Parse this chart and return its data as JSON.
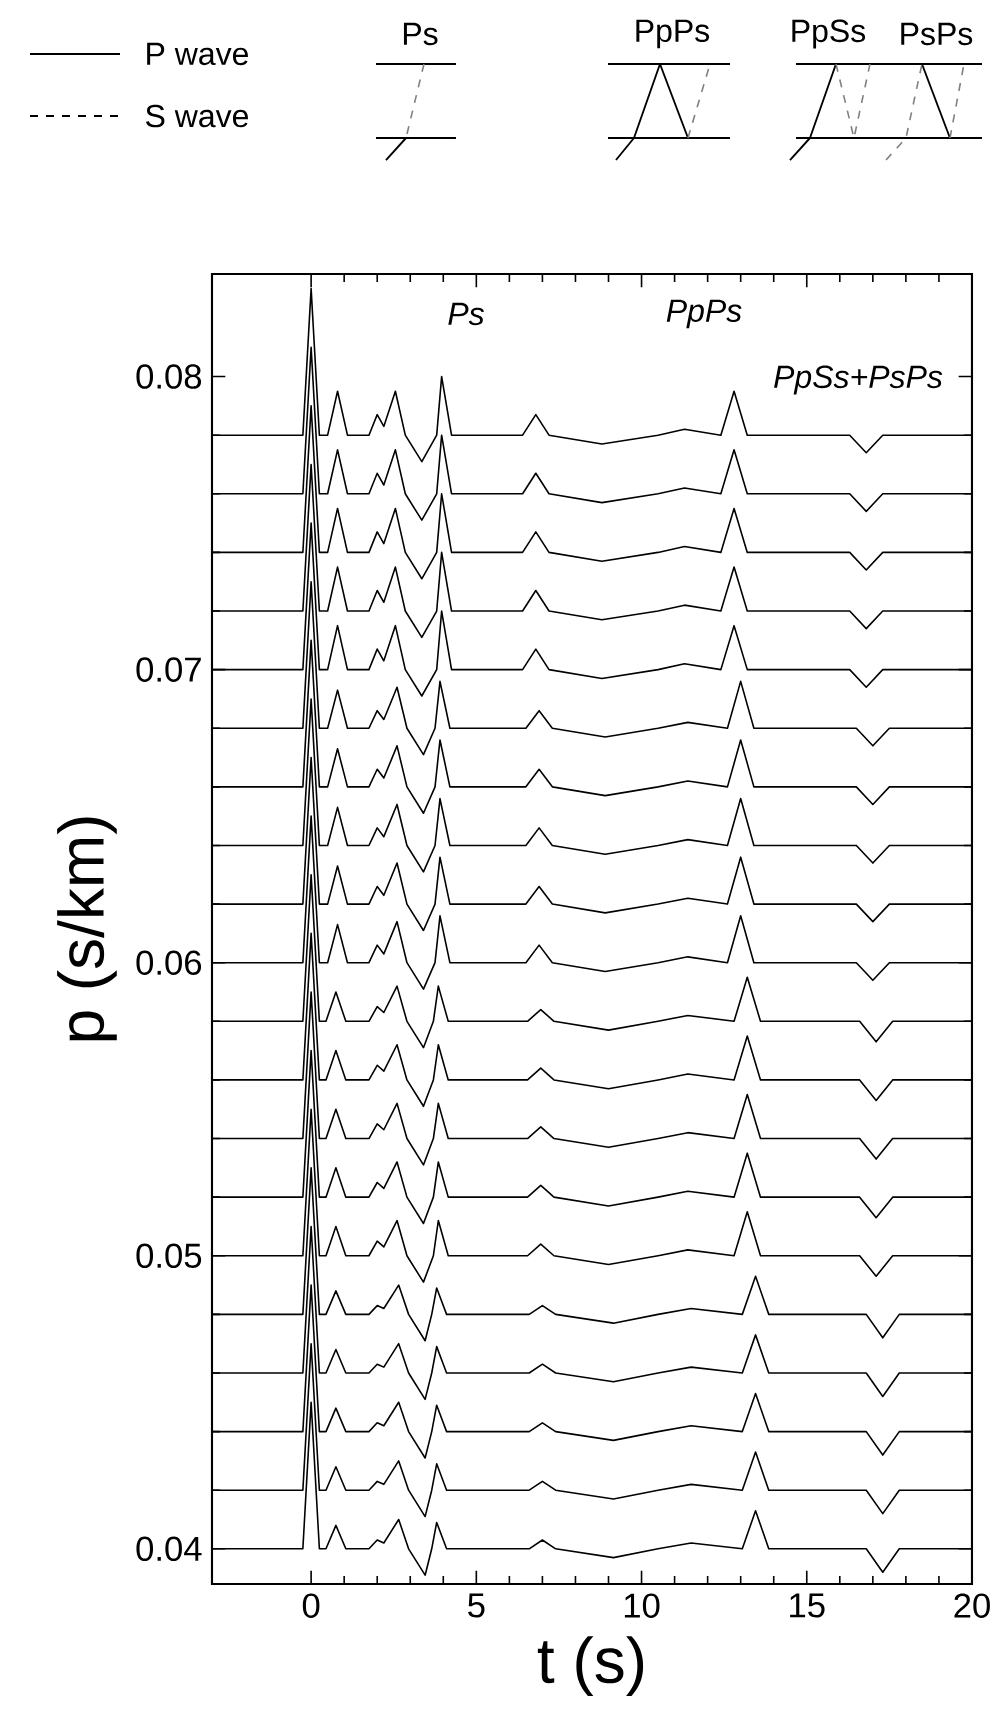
{
  "chart_data": {
    "type": "line",
    "xlabel": "t (s)",
    "ylabel": "p (s/km)",
    "xlim": [
      -3,
      20
    ],
    "ylim": [
      0.0388,
      0.0835
    ],
    "xticks": [
      0,
      5,
      10,
      15,
      20
    ],
    "yticks": [
      0.04,
      0.05,
      0.06,
      0.07,
      0.08
    ],
    "annotations": [
      "P wave",
      "S wave",
      "Ps",
      "PpPs",
      "PpSs",
      "PsPs",
      "Ps",
      "PpPs",
      "PpSs+PsPs"
    ],
    "series": [
      {
        "color": "#000000",
        "x": [
          -3,
          -0.25,
          0,
          0.25,
          0.5,
          0.8,
          1.1,
          1.75,
          2,
          2.2,
          2.55,
          2.85,
          3.35,
          3.8,
          3.95,
          4.25,
          5.5,
          6.4,
          6.8,
          7.2,
          8.8,
          10.5,
          11.3,
          12.4,
          12.8,
          13.2,
          16.3,
          16.8,
          17.3,
          20
        ],
        "values": [
          0.078,
          0.078,
          0.083,
          0.078,
          0.078,
          0.0795,
          0.078,
          0.078,
          0.0787,
          0.0783,
          0.0795,
          0.078,
          0.0771,
          0.078,
          0.08,
          0.078,
          0.078,
          0.078,
          0.0787,
          0.078,
          0.0777,
          0.078,
          0.0782,
          0.078,
          0.0795,
          0.078,
          0.078,
          0.0774,
          0.078,
          0.078
        ]
      },
      {
        "color": "#000000",
        "x": [
          -3,
          -0.25,
          0,
          0.25,
          0.5,
          0.8,
          1.1,
          1.75,
          2,
          2.2,
          2.55,
          2.85,
          3.35,
          3.8,
          3.95,
          4.25,
          5.5,
          6.4,
          6.8,
          7.2,
          8.8,
          10.5,
          11.3,
          12.4,
          12.8,
          13.2,
          16.3,
          16.8,
          17.3,
          20
        ],
        "values": [
          0.076,
          0.076,
          0.081,
          0.076,
          0.076,
          0.0775,
          0.076,
          0.076,
          0.0767,
          0.0763,
          0.0775,
          0.076,
          0.0751,
          0.076,
          0.078,
          0.076,
          0.076,
          0.076,
          0.0767,
          0.076,
          0.0757,
          0.076,
          0.0762,
          0.076,
          0.0775,
          0.076,
          0.076,
          0.0754,
          0.076,
          0.076
        ]
      },
      {
        "color": "#000000",
        "x": [
          -3,
          -0.25,
          0,
          0.25,
          0.5,
          0.8,
          1.1,
          1.75,
          2,
          2.2,
          2.55,
          2.85,
          3.35,
          3.8,
          3.95,
          4.25,
          5.5,
          6.4,
          6.8,
          7.2,
          8.8,
          10.5,
          11.3,
          12.4,
          12.8,
          13.2,
          16.3,
          16.8,
          17.3,
          20
        ],
        "values": [
          0.074,
          0.074,
          0.079,
          0.074,
          0.074,
          0.0755,
          0.074,
          0.074,
          0.0747,
          0.0743,
          0.0755,
          0.074,
          0.0731,
          0.074,
          0.076,
          0.074,
          0.074,
          0.074,
          0.0747,
          0.074,
          0.0737,
          0.074,
          0.0742,
          0.074,
          0.0755,
          0.074,
          0.074,
          0.0734,
          0.074,
          0.074
        ]
      },
      {
        "color": "#000000",
        "x": [
          -3,
          -0.25,
          0,
          0.25,
          0.5,
          0.8,
          1.1,
          1.75,
          2,
          2.2,
          2.55,
          2.85,
          3.35,
          3.8,
          3.95,
          4.25,
          5.5,
          6.4,
          6.8,
          7.2,
          8.8,
          10.5,
          11.3,
          12.4,
          12.8,
          13.2,
          16.3,
          16.8,
          17.3,
          20
        ],
        "values": [
          0.072,
          0.072,
          0.077,
          0.072,
          0.072,
          0.0735,
          0.072,
          0.072,
          0.0727,
          0.0723,
          0.0735,
          0.072,
          0.0711,
          0.072,
          0.074,
          0.072,
          0.072,
          0.072,
          0.0727,
          0.072,
          0.0717,
          0.072,
          0.0722,
          0.072,
          0.0735,
          0.072,
          0.072,
          0.0714,
          0.072,
          0.072
        ]
      },
      {
        "color": "#000000",
        "x": [
          -3,
          -0.25,
          0,
          0.25,
          0.5,
          0.8,
          1.1,
          1.75,
          2,
          2.2,
          2.55,
          2.85,
          3.35,
          3.8,
          3.95,
          4.25,
          5.5,
          6.4,
          6.8,
          7.2,
          8.8,
          10.5,
          11.3,
          12.4,
          12.8,
          13.2,
          16.3,
          16.8,
          17.3,
          20
        ],
        "values": [
          0.07,
          0.07,
          0.075,
          0.07,
          0.07,
          0.0715,
          0.07,
          0.07,
          0.0707,
          0.0703,
          0.0715,
          0.07,
          0.0691,
          0.07,
          0.072,
          0.07,
          0.07,
          0.07,
          0.0707,
          0.07,
          0.0697,
          0.07,
          0.0702,
          0.07,
          0.0715,
          0.07,
          0.07,
          0.0694,
          0.07,
          0.07
        ]
      },
      {
        "color": "#000000",
        "x": [
          -3,
          -0.25,
          0,
          0.25,
          0.5,
          0.8,
          1.1,
          1.75,
          2,
          2.2,
          2.6,
          2.9,
          3.4,
          3.75,
          3.9,
          4.2,
          5.6,
          6.5,
          6.9,
          7.3,
          8.9,
          10.5,
          11.4,
          12.6,
          13,
          13.4,
          16.5,
          17,
          17.5,
          20
        ],
        "values": [
          0.068,
          0.068,
          0.073,
          0.068,
          0.068,
          0.0693,
          0.068,
          0.068,
          0.0686,
          0.0683,
          0.0694,
          0.068,
          0.0671,
          0.068,
          0.0696,
          0.068,
          0.068,
          0.068,
          0.0686,
          0.068,
          0.0677,
          0.068,
          0.0682,
          0.068,
          0.0696,
          0.068,
          0.068,
          0.0674,
          0.068,
          0.068
        ]
      },
      {
        "color": "#000000",
        "x": [
          -3,
          -0.25,
          0,
          0.25,
          0.5,
          0.8,
          1.1,
          1.75,
          2,
          2.2,
          2.6,
          2.9,
          3.4,
          3.75,
          3.9,
          4.2,
          5.6,
          6.5,
          6.9,
          7.3,
          8.9,
          10.5,
          11.4,
          12.6,
          13,
          13.4,
          16.5,
          17,
          17.5,
          20
        ],
        "values": [
          0.066,
          0.066,
          0.071,
          0.066,
          0.066,
          0.0673,
          0.066,
          0.066,
          0.0666,
          0.0663,
          0.0674,
          0.066,
          0.0651,
          0.066,
          0.0676,
          0.066,
          0.066,
          0.066,
          0.0666,
          0.066,
          0.0657,
          0.066,
          0.0662,
          0.066,
          0.0676,
          0.066,
          0.066,
          0.0654,
          0.066,
          0.066
        ]
      },
      {
        "color": "#000000",
        "x": [
          -3,
          -0.25,
          0,
          0.25,
          0.5,
          0.8,
          1.1,
          1.75,
          2,
          2.2,
          2.6,
          2.9,
          3.4,
          3.75,
          3.9,
          4.2,
          5.6,
          6.5,
          6.9,
          7.3,
          8.9,
          10.5,
          11.4,
          12.6,
          13,
          13.4,
          16.5,
          17,
          17.5,
          20
        ],
        "values": [
          0.064,
          0.064,
          0.069,
          0.064,
          0.064,
          0.0653,
          0.064,
          0.064,
          0.0646,
          0.0643,
          0.0654,
          0.064,
          0.0631,
          0.064,
          0.0656,
          0.064,
          0.064,
          0.064,
          0.0646,
          0.064,
          0.0637,
          0.064,
          0.0642,
          0.064,
          0.0656,
          0.064,
          0.064,
          0.0634,
          0.064,
          0.064
        ]
      },
      {
        "color": "#000000",
        "x": [
          -3,
          -0.25,
          0,
          0.25,
          0.5,
          0.8,
          1.1,
          1.75,
          2,
          2.2,
          2.6,
          2.9,
          3.4,
          3.75,
          3.9,
          4.2,
          5.6,
          6.5,
          6.9,
          7.3,
          8.9,
          10.5,
          11.4,
          12.6,
          13,
          13.4,
          16.5,
          17,
          17.5,
          20
        ],
        "values": [
          0.062,
          0.062,
          0.067,
          0.062,
          0.062,
          0.0633,
          0.062,
          0.062,
          0.0626,
          0.0623,
          0.0634,
          0.062,
          0.0611,
          0.062,
          0.0636,
          0.062,
          0.062,
          0.062,
          0.0626,
          0.062,
          0.0617,
          0.062,
          0.0622,
          0.062,
          0.0636,
          0.062,
          0.062,
          0.0614,
          0.062,
          0.062
        ]
      },
      {
        "color": "#000000",
        "x": [
          -3,
          -0.25,
          0,
          0.25,
          0.5,
          0.8,
          1.1,
          1.75,
          2,
          2.2,
          2.6,
          2.9,
          3.4,
          3.75,
          3.9,
          4.2,
          5.6,
          6.5,
          6.9,
          7.3,
          8.9,
          10.5,
          11.4,
          12.6,
          13,
          13.4,
          16.5,
          17,
          17.5,
          20
        ],
        "values": [
          0.06,
          0.06,
          0.065,
          0.06,
          0.06,
          0.0613,
          0.06,
          0.06,
          0.0606,
          0.0603,
          0.0614,
          0.06,
          0.0591,
          0.06,
          0.0616,
          0.06,
          0.06,
          0.06,
          0.0606,
          0.06,
          0.0597,
          0.06,
          0.0602,
          0.06,
          0.0616,
          0.06,
          0.06,
          0.0594,
          0.06,
          0.06
        ]
      },
      {
        "color": "#000000",
        "x": [
          -3,
          -0.25,
          0,
          0.25,
          0.45,
          0.75,
          1.05,
          1.75,
          2,
          2.2,
          2.6,
          2.9,
          3.4,
          3.7,
          3.85,
          4.15,
          5.7,
          6.55,
          6.95,
          7.35,
          9,
          10.5,
          11.4,
          12.8,
          13.2,
          13.6,
          16.6,
          17.1,
          17.6,
          20
        ],
        "values": [
          0.058,
          0.058,
          0.063,
          0.058,
          0.058,
          0.059,
          0.058,
          0.058,
          0.0585,
          0.0583,
          0.0592,
          0.058,
          0.0571,
          0.058,
          0.0592,
          0.058,
          0.058,
          0.058,
          0.0584,
          0.058,
          0.0577,
          0.058,
          0.0582,
          0.058,
          0.0595,
          0.058,
          0.058,
          0.0573,
          0.058,
          0.058
        ]
      },
      {
        "color": "#000000",
        "x": [
          -3,
          -0.25,
          0,
          0.25,
          0.45,
          0.75,
          1.05,
          1.75,
          2,
          2.2,
          2.6,
          2.9,
          3.4,
          3.7,
          3.85,
          4.15,
          5.7,
          6.55,
          6.95,
          7.35,
          9,
          10.5,
          11.4,
          12.8,
          13.2,
          13.6,
          16.6,
          17.1,
          17.6,
          20
        ],
        "values": [
          0.056,
          0.056,
          0.061,
          0.056,
          0.056,
          0.057,
          0.056,
          0.056,
          0.0565,
          0.0563,
          0.0572,
          0.056,
          0.0551,
          0.056,
          0.0572,
          0.056,
          0.056,
          0.056,
          0.0564,
          0.056,
          0.0557,
          0.056,
          0.0562,
          0.056,
          0.0575,
          0.056,
          0.056,
          0.0553,
          0.056,
          0.056
        ]
      },
      {
        "color": "#000000",
        "x": [
          -3,
          -0.25,
          0,
          0.25,
          0.45,
          0.75,
          1.05,
          1.75,
          2,
          2.2,
          2.6,
          2.9,
          3.4,
          3.7,
          3.85,
          4.15,
          5.7,
          6.55,
          6.95,
          7.35,
          9,
          10.5,
          11.4,
          12.8,
          13.2,
          13.6,
          16.6,
          17.1,
          17.6,
          20
        ],
        "values": [
          0.054,
          0.054,
          0.059,
          0.054,
          0.054,
          0.055,
          0.054,
          0.054,
          0.0545,
          0.0543,
          0.0552,
          0.054,
          0.0531,
          0.054,
          0.0552,
          0.054,
          0.054,
          0.054,
          0.0544,
          0.054,
          0.0537,
          0.054,
          0.0542,
          0.054,
          0.0555,
          0.054,
          0.054,
          0.0533,
          0.054,
          0.054
        ]
      },
      {
        "color": "#000000",
        "x": [
          -3,
          -0.25,
          0,
          0.25,
          0.45,
          0.75,
          1.05,
          1.75,
          2,
          2.2,
          2.6,
          2.9,
          3.4,
          3.7,
          3.85,
          4.15,
          5.7,
          6.55,
          6.95,
          7.35,
          9,
          10.5,
          11.4,
          12.8,
          13.2,
          13.6,
          16.6,
          17.1,
          17.6,
          20
        ],
        "values": [
          0.052,
          0.052,
          0.057,
          0.052,
          0.052,
          0.053,
          0.052,
          0.052,
          0.0525,
          0.0523,
          0.0532,
          0.052,
          0.0511,
          0.052,
          0.0532,
          0.052,
          0.052,
          0.052,
          0.0524,
          0.052,
          0.0517,
          0.052,
          0.0522,
          0.052,
          0.0535,
          0.052,
          0.052,
          0.0513,
          0.052,
          0.052
        ]
      },
      {
        "color": "#000000",
        "x": [
          -3,
          -0.25,
          0,
          0.25,
          0.45,
          0.75,
          1.05,
          1.75,
          2,
          2.2,
          2.6,
          2.9,
          3.4,
          3.7,
          3.85,
          4.15,
          5.7,
          6.55,
          6.95,
          7.35,
          9,
          10.5,
          11.4,
          12.8,
          13.2,
          13.6,
          16.6,
          17.1,
          17.6,
          20
        ],
        "values": [
          0.05,
          0.05,
          0.055,
          0.05,
          0.05,
          0.051,
          0.05,
          0.05,
          0.0505,
          0.0503,
          0.0512,
          0.05,
          0.0491,
          0.05,
          0.0512,
          0.05,
          0.05,
          0.05,
          0.0504,
          0.05,
          0.0497,
          0.05,
          0.0502,
          0.05,
          0.0515,
          0.05,
          0.05,
          0.0493,
          0.05,
          0.05
        ]
      },
      {
        "color": "#000000",
        "x": [
          -3,
          -0.25,
          0,
          0.25,
          0.45,
          0.75,
          1.05,
          1.75,
          2,
          2.2,
          2.65,
          2.95,
          3.45,
          3.65,
          3.8,
          4.1,
          5.8,
          6.6,
          7,
          7.4,
          9.15,
          10.5,
          11.5,
          13.05,
          13.45,
          13.85,
          16.8,
          17.3,
          17.8,
          20
        ],
        "values": [
          0.048,
          0.048,
          0.053,
          0.048,
          0.048,
          0.0488,
          0.048,
          0.048,
          0.0483,
          0.0482,
          0.049,
          0.048,
          0.0471,
          0.048,
          0.0489,
          0.048,
          0.048,
          0.048,
          0.0483,
          0.048,
          0.0477,
          0.048,
          0.0482,
          0.048,
          0.0493,
          0.048,
          0.048,
          0.0472,
          0.048,
          0.048
        ]
      },
      {
        "color": "#000000",
        "x": [
          -3,
          -0.25,
          0,
          0.25,
          0.45,
          0.75,
          1.05,
          1.75,
          2,
          2.2,
          2.65,
          2.95,
          3.45,
          3.65,
          3.8,
          4.1,
          5.8,
          6.6,
          7,
          7.4,
          9.15,
          10.5,
          11.5,
          13.05,
          13.45,
          13.85,
          16.8,
          17.3,
          17.8,
          20
        ],
        "values": [
          0.046,
          0.046,
          0.051,
          0.046,
          0.046,
          0.0468,
          0.046,
          0.046,
          0.0463,
          0.0462,
          0.047,
          0.046,
          0.0451,
          0.046,
          0.0469,
          0.046,
          0.046,
          0.046,
          0.0463,
          0.046,
          0.0457,
          0.046,
          0.0462,
          0.046,
          0.0473,
          0.046,
          0.046,
          0.0452,
          0.046,
          0.046
        ]
      },
      {
        "color": "#000000",
        "x": [
          -3,
          -0.25,
          0,
          0.25,
          0.45,
          0.75,
          1.05,
          1.75,
          2,
          2.2,
          2.65,
          2.95,
          3.45,
          3.65,
          3.8,
          4.1,
          5.8,
          6.6,
          7,
          7.4,
          9.15,
          10.5,
          11.5,
          13.05,
          13.45,
          13.85,
          16.8,
          17.3,
          17.8,
          20
        ],
        "values": [
          0.044,
          0.044,
          0.049,
          0.044,
          0.044,
          0.0448,
          0.044,
          0.044,
          0.0443,
          0.0442,
          0.045,
          0.044,
          0.0431,
          0.044,
          0.0449,
          0.044,
          0.044,
          0.044,
          0.0443,
          0.044,
          0.0437,
          0.044,
          0.0442,
          0.044,
          0.0453,
          0.044,
          0.044,
          0.0432,
          0.044,
          0.044
        ]
      },
      {
        "color": "#000000",
        "x": [
          -3,
          -0.25,
          0,
          0.25,
          0.45,
          0.75,
          1.05,
          1.75,
          2,
          2.2,
          2.65,
          2.95,
          3.45,
          3.65,
          3.8,
          4.1,
          5.8,
          6.6,
          7,
          7.4,
          9.15,
          10.5,
          11.5,
          13.05,
          13.45,
          13.85,
          16.8,
          17.3,
          17.8,
          20
        ],
        "values": [
          0.042,
          0.042,
          0.047,
          0.042,
          0.042,
          0.0428,
          0.042,
          0.042,
          0.0423,
          0.0422,
          0.043,
          0.042,
          0.0411,
          0.042,
          0.0429,
          0.042,
          0.042,
          0.042,
          0.0423,
          0.042,
          0.0417,
          0.042,
          0.0422,
          0.042,
          0.0433,
          0.042,
          0.042,
          0.0412,
          0.042,
          0.042
        ]
      },
      {
        "color": "#000000",
        "x": [
          -3,
          -0.25,
          0,
          0.25,
          0.45,
          0.75,
          1.05,
          1.75,
          2,
          2.2,
          2.65,
          2.95,
          3.45,
          3.65,
          3.8,
          4.1,
          5.8,
          6.6,
          7,
          7.4,
          9.15,
          10.5,
          11.5,
          13.05,
          13.45,
          13.85,
          16.8,
          17.3,
          17.8,
          20
        ],
        "values": [
          0.04,
          0.04,
          0.045,
          0.04,
          0.04,
          0.0408,
          0.04,
          0.04,
          0.0403,
          0.0402,
          0.041,
          0.04,
          0.0391,
          0.04,
          0.0409,
          0.04,
          0.04,
          0.04,
          0.0403,
          0.04,
          0.0397,
          0.04,
          0.0402,
          0.04,
          0.0413,
          0.04,
          0.04,
          0.0392,
          0.04,
          0.04
        ]
      }
    ]
  }
}
